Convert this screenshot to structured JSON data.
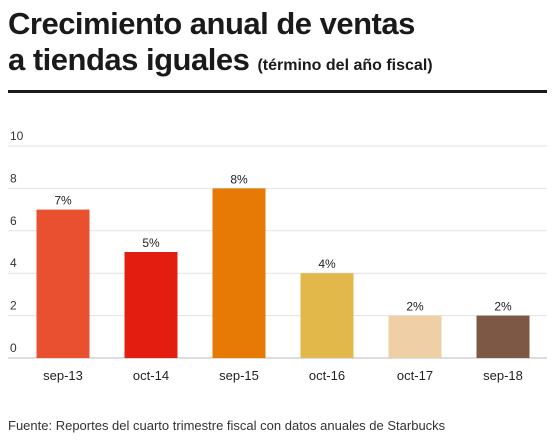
{
  "header": {
    "title_line1": "Crecimiento anual de ventas",
    "title_line2": "a tiendas iguales",
    "subtitle": "(término del año fiscal)"
  },
  "footer": {
    "source": "Fuente: Reportes del cuarto trimestre fiscal con datos anuales de Starbucks"
  },
  "chart_data": {
    "type": "bar",
    "title": "Crecimiento anual de ventas a tiendas iguales",
    "subtitle": "(término del año fiscal)",
    "xlabel": "",
    "ylabel": "",
    "ylim": [
      0,
      10
    ],
    "yticks": [
      0,
      2,
      4,
      6,
      8,
      10
    ],
    "grid": true,
    "categories": [
      "sep-13",
      "oct-14",
      "sep-15",
      "oct-16",
      "oct-17",
      "sep-18"
    ],
    "values": [
      7,
      5,
      8,
      4,
      2,
      2
    ],
    "data_labels": [
      "7%",
      "5%",
      "8%",
      "4%",
      "2%",
      "2%"
    ],
    "colors": [
      "#e8502f",
      "#e31e10",
      "#e67a05",
      "#e3b84a",
      "#efcfa5",
      "#7d5844"
    ]
  }
}
